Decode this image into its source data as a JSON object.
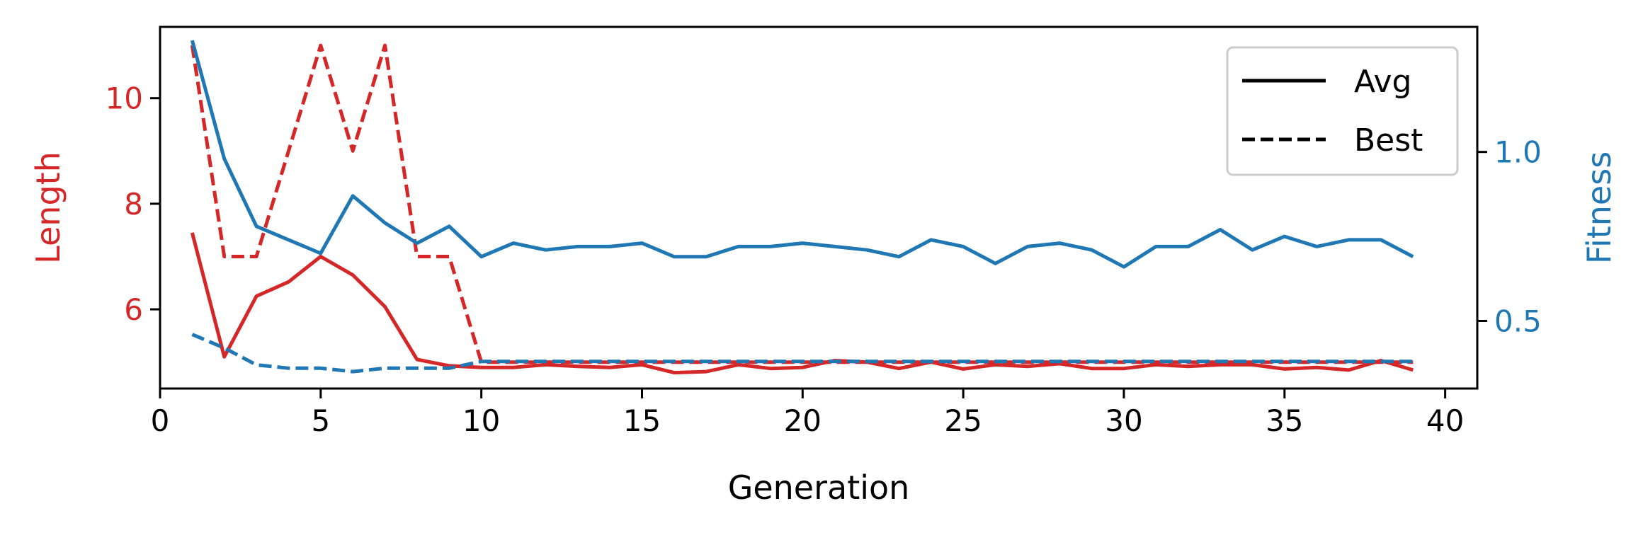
{
  "chart_data": {
    "type": "line",
    "title": "",
    "xlabel": "Generation",
    "ylabel_left": "Length",
    "ylabel_right": "Fitness",
    "xlim": [
      0,
      41
    ],
    "ylim_left": [
      4.5,
      11.35
    ],
    "ylim_right": [
      0.3,
      1.37
    ],
    "xticks": [
      0,
      5,
      10,
      15,
      20,
      25,
      30,
      35,
      40
    ],
    "yticks_left": [
      6,
      8,
      10
    ],
    "yticks_right": [
      0.5,
      1.0
    ],
    "ytick_labels_right": [
      "0.5",
      "1.0"
    ],
    "colors": {
      "length": "#d62728",
      "fitness": "#1f77b4",
      "axis": "#000000"
    },
    "legend": {
      "placement": "top-right",
      "entries": [
        {
          "label": "Avg",
          "style": "solid"
        },
        {
          "label": "Best",
          "style": "dashed"
        }
      ]
    },
    "grid": false,
    "x": [
      1,
      2,
      3,
      4,
      5,
      6,
      7,
      8,
      9,
      10,
      11,
      12,
      13,
      14,
      15,
      16,
      17,
      18,
      19,
      20,
      21,
      22,
      23,
      24,
      25,
      26,
      27,
      28,
      29,
      30,
      31,
      32,
      33,
      34,
      35,
      36,
      37,
      38,
      39
    ],
    "series": [
      {
        "axis": "left",
        "color": "#d62728",
        "style": "solid",
        "values": [
          7.45,
          5.1,
          6.25,
          6.52,
          7.0,
          6.65,
          6.05,
          5.05,
          4.93,
          4.9,
          4.9,
          4.95,
          4.92,
          4.9,
          4.95,
          4.8,
          4.82,
          4.95,
          4.88,
          4.9,
          5.03,
          5.0,
          4.88,
          5.0,
          4.87,
          4.95,
          4.92,
          4.97,
          4.88,
          4.88,
          4.95,
          4.92,
          4.95,
          4.95,
          4.87,
          4.9,
          4.85,
          5.03,
          4.85
        ]
      },
      {
        "axis": "left",
        "color": "#d62728",
        "style": "dashed",
        "values": [
          11.0,
          7.0,
          7.0,
          9.0,
          11.0,
          9.0,
          11.0,
          7.0,
          7.0,
          5.0,
          5.0,
          5.0,
          5.0,
          5.0,
          5.0,
          5.0,
          5.0,
          5.0,
          5.0,
          5.0,
          5.0,
          5.0,
          5.0,
          5.0,
          5.0,
          5.0,
          5.0,
          5.0,
          5.0,
          5.0,
          5.0,
          5.0,
          5.0,
          5.0,
          5.0,
          5.0,
          5.0,
          5.0,
          5.0
        ]
      },
      {
        "axis": "right",
        "color": "#1f77b4",
        "style": "solid",
        "values": [
          1.33,
          0.98,
          0.78,
          0.74,
          0.7,
          0.87,
          0.79,
          0.73,
          0.78,
          0.69,
          0.73,
          0.71,
          0.72,
          0.72,
          0.73,
          0.69,
          0.69,
          0.72,
          0.72,
          0.73,
          0.72,
          0.71,
          0.69,
          0.74,
          0.72,
          0.67,
          0.72,
          0.73,
          0.71,
          0.66,
          0.72,
          0.72,
          0.77,
          0.71,
          0.75,
          0.72,
          0.74,
          0.74,
          0.69
        ]
      },
      {
        "axis": "right",
        "color": "#1f77b4",
        "style": "dashed",
        "values": [
          0.46,
          0.42,
          0.37,
          0.36,
          0.36,
          0.35,
          0.36,
          0.36,
          0.36,
          0.38,
          0.38,
          0.38,
          0.38,
          0.38,
          0.38,
          0.38,
          0.38,
          0.38,
          0.38,
          0.38,
          0.38,
          0.38,
          0.38,
          0.38,
          0.38,
          0.38,
          0.38,
          0.38,
          0.38,
          0.38,
          0.38,
          0.38,
          0.38,
          0.38,
          0.38,
          0.38,
          0.38,
          0.38,
          0.38
        ]
      }
    ]
  }
}
